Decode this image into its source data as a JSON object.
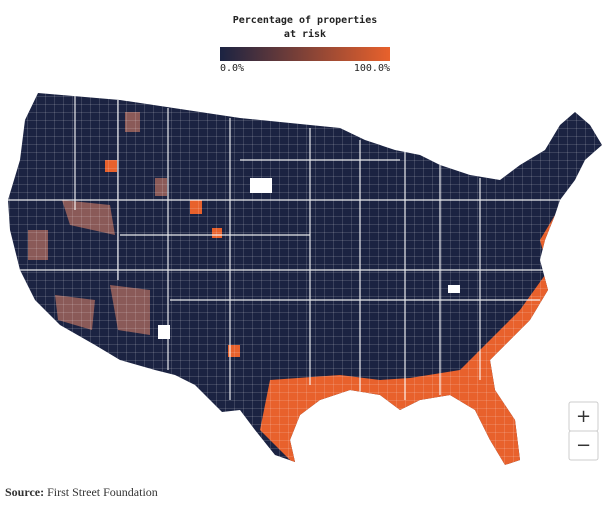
{
  "legend": {
    "title_lines": [
      "Percentage of properties",
      "at risk"
    ],
    "min_label": "0.0%",
    "max_label": "100.0%",
    "colors": [
      "#1b2342",
      "#e8612c"
    ]
  },
  "controls": {
    "zoom_in": "+",
    "zoom_out": "−"
  },
  "source": {
    "label": "Source:",
    "text": "First Street Foundation"
  }
}
